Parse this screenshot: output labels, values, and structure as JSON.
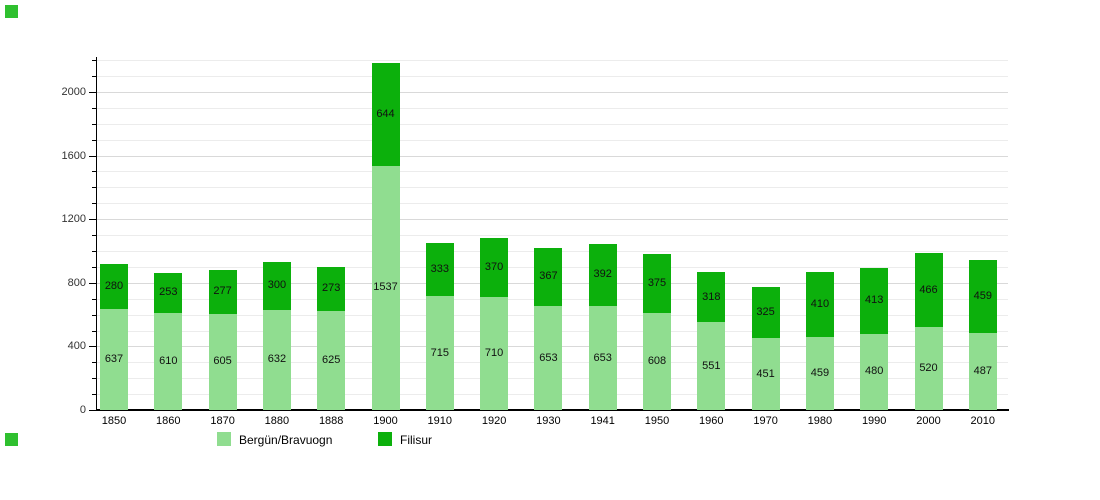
{
  "chart_data": {
    "type": "bar",
    "stacked": true,
    "title": "",
    "xlabel": "",
    "ylabel": "",
    "categories": [
      "1850",
      "1860",
      "1870",
      "1880",
      "1888",
      "1900",
      "1910",
      "1920",
      "1930",
      "1941",
      "1950",
      "1960",
      "1970",
      "1980",
      "1990",
      "2000",
      "2010"
    ],
    "series": [
      {
        "name": "Bergün/Bravuogn",
        "color": "#90dd90",
        "values": [
          637,
          610,
          605,
          632,
          625,
          1537,
          715,
          710,
          653,
          653,
          608,
          551,
          451,
          459,
          480,
          520,
          487
        ]
      },
      {
        "name": "Filisur",
        "color": "#0cb00c",
        "values": [
          280,
          253,
          277,
          300,
          273,
          644,
          333,
          370,
          367,
          392,
          375,
          318,
          325,
          410,
          413,
          466,
          459
        ]
      }
    ],
    "bar_value_labels_shown": true,
    "ylim": [
      0,
      2200
    ],
    "y_major_tick_labels": [
      "0",
      "400",
      "800",
      "1200",
      "1600",
      "2000"
    ],
    "y_major_tick_values": [
      0,
      400,
      800,
      1200,
      1600,
      2000
    ],
    "y_minor_step": 100,
    "grid": true,
    "legend_position": "bottom"
  },
  "decorations": {
    "corner_marker_color": "#2fc02f",
    "axis_color": "#000000",
    "minor_grid_color": "#ececec",
    "major_grid_color": "#d9d9d9",
    "background_color": "#ffffff"
  }
}
